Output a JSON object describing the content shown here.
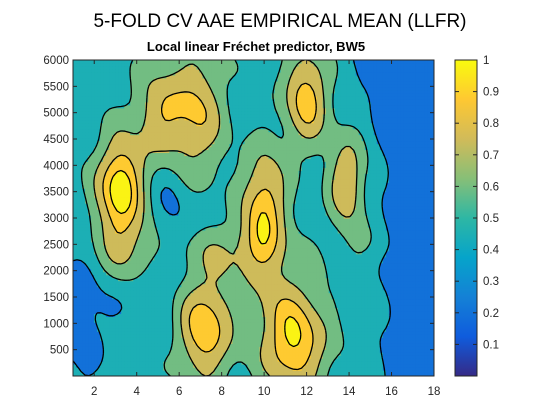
{
  "figure": {
    "title": "5-FOLD CV AAE EMPIRICAL MEAN (LLFR)",
    "subtitle": "Local linear Fréchet predictor, BW5"
  },
  "chart_data": {
    "type": "heatmap",
    "title": "5-FOLD CV AAE EMPIRICAL MEAN (LLFR)",
    "subtitle": "Local linear Fréchet predictor, BW5",
    "xlabel": "",
    "ylabel": "",
    "xlim": [
      1,
      18
    ],
    "ylim": [
      0,
      6000
    ],
    "xticks": [
      2,
      4,
      6,
      8,
      10,
      12,
      14,
      16,
      18
    ],
    "yticks": [
      500,
      1000,
      1500,
      2000,
      2500,
      3000,
      3500,
      4000,
      4500,
      5000,
      5500,
      6000
    ],
    "colorbar": {
      "ticks": [
        0.1,
        0.2,
        0.3,
        0.4,
        0.5,
        0.6,
        0.7,
        0.8,
        0.9,
        1
      ],
      "range": [
        0,
        1
      ],
      "colormap": "parula"
    },
    "contour_levels": [
      0.35,
      0.5,
      0.65,
      0.8,
      0.92
    ],
    "colormap_stops": [
      "#352a87",
      "#0f5cdd",
      "#1481d6",
      "#06a4ca",
      "#2eb7a4",
      "#87bf77",
      "#d1bb59",
      "#fec832",
      "#f9fb0e"
    ],
    "surface_model": {
      "description_units": "x in column index, y in value units",
      "base": 0.42,
      "ridges": [
        {
          "x": 3.2,
          "y": 3600,
          "sx": 0.8,
          "sy": 650,
          "a": 0.58
        },
        {
          "x": 3.6,
          "y": 2400,
          "sx": 1.2,
          "sy": 500,
          "a": 0.22
        },
        {
          "x": 5.1,
          "y": 5000,
          "sx": 0.9,
          "sy": 650,
          "a": 0.32
        },
        {
          "x": 6.9,
          "y": 5000,
          "sx": 0.9,
          "sy": 900,
          "a": 0.35
        },
        {
          "x": 10.0,
          "y": 3200,
          "sx": 0.75,
          "sy": 750,
          "a": 0.48
        },
        {
          "x": 12.0,
          "y": 5300,
          "sx": 0.75,
          "sy": 650,
          "a": 0.45
        },
        {
          "x": 13.9,
          "y": 3700,
          "sx": 0.6,
          "sy": 600,
          "a": 0.38
        },
        {
          "x": 7.2,
          "y": 900,
          "sx": 0.9,
          "sy": 700,
          "a": 0.48
        },
        {
          "x": 11.4,
          "y": 600,
          "sx": 1.1,
          "sy": 650,
          "a": 0.5
        },
        {
          "x": 8.5,
          "y": 2400,
          "sx": 1.8,
          "sy": 350,
          "a": 0.18
        },
        {
          "x": 15.0,
          "y": 2500,
          "sx": 1.0,
          "sy": 300,
          "a": 0.08
        },
        {
          "x": 10.6,
          "y": 1600,
          "sx": 1.5,
          "sy": 600,
          "a": 0.14
        }
      ],
      "wells": [
        {
          "x": 17.3,
          "y": 3000,
          "sx": 1.0,
          "sy": 3500,
          "a": 0.34
        },
        {
          "x": 1.3,
          "y": 1200,
          "sx": 0.9,
          "sy": 900,
          "a": 0.16
        },
        {
          "x": 5.6,
          "y": 3100,
          "sx": 0.8,
          "sy": 700,
          "a": 0.12
        },
        {
          "x": 15.8,
          "y": 5800,
          "sx": 1.2,
          "sy": 600,
          "a": 0.14
        },
        {
          "x": 4.4,
          "y": 1600,
          "sx": 1.1,
          "sy": 500,
          "a": 0.08
        }
      ]
    }
  }
}
